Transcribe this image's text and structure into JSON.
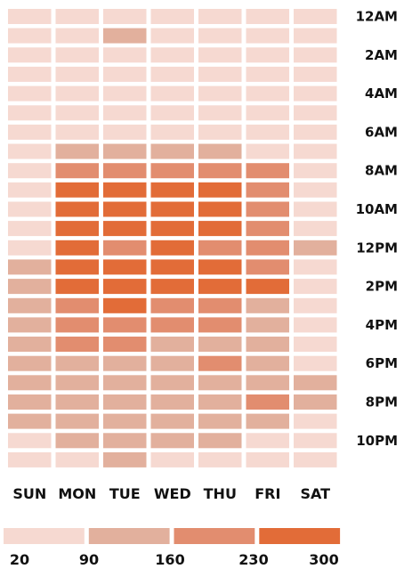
{
  "colors": {
    "background": "#ffffff",
    "bins": [
      "#f6d9d1",
      "#e2b09d",
      "#e28d6f",
      "#e26c38"
    ],
    "text": "#111111"
  },
  "chart_data": {
    "type": "heatmap",
    "title": "",
    "xlabel": "",
    "ylabel": "",
    "x": [
      "SUN",
      "MON",
      "TUE",
      "WED",
      "THU",
      "FRI",
      "SAT"
    ],
    "y_hours": 24,
    "y_tick_labels": [
      "12AM",
      "2AM",
      "4AM",
      "6AM",
      "8AM",
      "10AM",
      "12PM",
      "2PM",
      "4PM",
      "6PM",
      "8PM",
      "10PM"
    ],
    "y_tick_every": 2,
    "values": [
      [
        35,
        35,
        35,
        35,
        35,
        35,
        35
      ],
      [
        35,
        35,
        110,
        35,
        35,
        35,
        35
      ],
      [
        35,
        35,
        35,
        35,
        35,
        35,
        35
      ],
      [
        35,
        35,
        35,
        35,
        35,
        35,
        35
      ],
      [
        35,
        35,
        35,
        35,
        35,
        35,
        35
      ],
      [
        35,
        35,
        35,
        35,
        35,
        35,
        35
      ],
      [
        35,
        35,
        35,
        35,
        35,
        35,
        35
      ],
      [
        35,
        110,
        110,
        110,
        110,
        35,
        35
      ],
      [
        35,
        180,
        180,
        180,
        180,
        180,
        35
      ],
      [
        35,
        260,
        260,
        260,
        260,
        180,
        35
      ],
      [
        35,
        280,
        280,
        280,
        280,
        180,
        35
      ],
      [
        35,
        260,
        260,
        260,
        260,
        180,
        35
      ],
      [
        35,
        260,
        180,
        260,
        180,
        180,
        110
      ],
      [
        110,
        260,
        260,
        260,
        260,
        180,
        35
      ],
      [
        110,
        260,
        260,
        260,
        260,
        260,
        35
      ],
      [
        110,
        180,
        260,
        180,
        180,
        110,
        35
      ],
      [
        110,
        180,
        180,
        180,
        180,
        110,
        35
      ],
      [
        110,
        180,
        180,
        110,
        110,
        110,
        35
      ],
      [
        110,
        110,
        110,
        110,
        180,
        110,
        35
      ],
      [
        110,
        110,
        110,
        110,
        110,
        110,
        110
      ],
      [
        110,
        110,
        110,
        110,
        110,
        180,
        110
      ],
      [
        110,
        110,
        110,
        110,
        110,
        110,
        35
      ],
      [
        35,
        110,
        110,
        110,
        110,
        35,
        35
      ],
      [
        35,
        35,
        110,
        35,
        35,
        35,
        35
      ]
    ],
    "scale": {
      "bins": [
        20,
        90,
        160,
        230,
        300
      ],
      "labels": [
        "20",
        "90",
        "160",
        "230",
        "300"
      ]
    },
    "legend": "bottom",
    "grid": false
  }
}
